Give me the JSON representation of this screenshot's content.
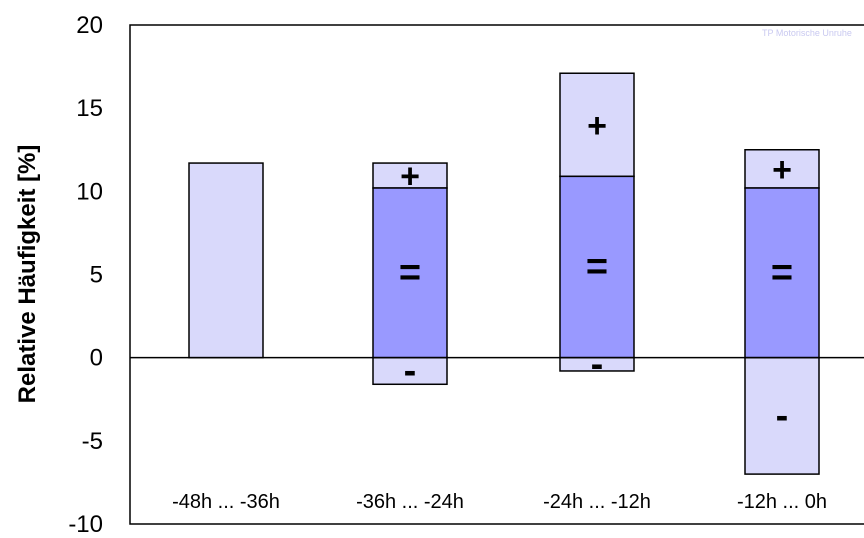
{
  "chart_data": {
    "type": "bar",
    "title": "",
    "xlabel": "",
    "ylabel": "Relative Häufigkeit [%]",
    "ylim": [
      -10,
      20
    ],
    "yticks": [
      20,
      15,
      10,
      5,
      0,
      -5,
      -10
    ],
    "grid": false,
    "watermark": "TP Motorische Unruhe",
    "categories": [
      "-48h ... -36h",
      "-36h ... -24h",
      "-24h ... -12h",
      "-12h ... 0h"
    ],
    "segments": [
      [
        {
          "from": 0,
          "to": 11.7,
          "kind": "light",
          "sign": ""
        }
      ],
      [
        {
          "from": 10.2,
          "to": 11.7,
          "kind": "light",
          "sign": "+"
        },
        {
          "from": 0,
          "to": 10.2,
          "kind": "dark",
          "sign": "="
        },
        {
          "from": -1.6,
          "to": 0,
          "kind": "light",
          "sign": "-"
        }
      ],
      [
        {
          "from": 10.9,
          "to": 17.1,
          "kind": "light",
          "sign": "+"
        },
        {
          "from": 0,
          "to": 10.9,
          "kind": "dark",
          "sign": "="
        },
        {
          "from": -0.8,
          "to": 0,
          "kind": "light",
          "sign": "-"
        }
      ],
      [
        {
          "from": 10.2,
          "to": 12.5,
          "kind": "light",
          "sign": "+"
        },
        {
          "from": 0,
          "to": 10.2,
          "kind": "dark",
          "sign": "="
        },
        {
          "from": -7.0,
          "to": 0,
          "kind": "light",
          "sign": "-"
        }
      ]
    ],
    "colors": {
      "light": "#d9d9fb",
      "dark": "#9999ff",
      "stroke": "#000000"
    }
  }
}
